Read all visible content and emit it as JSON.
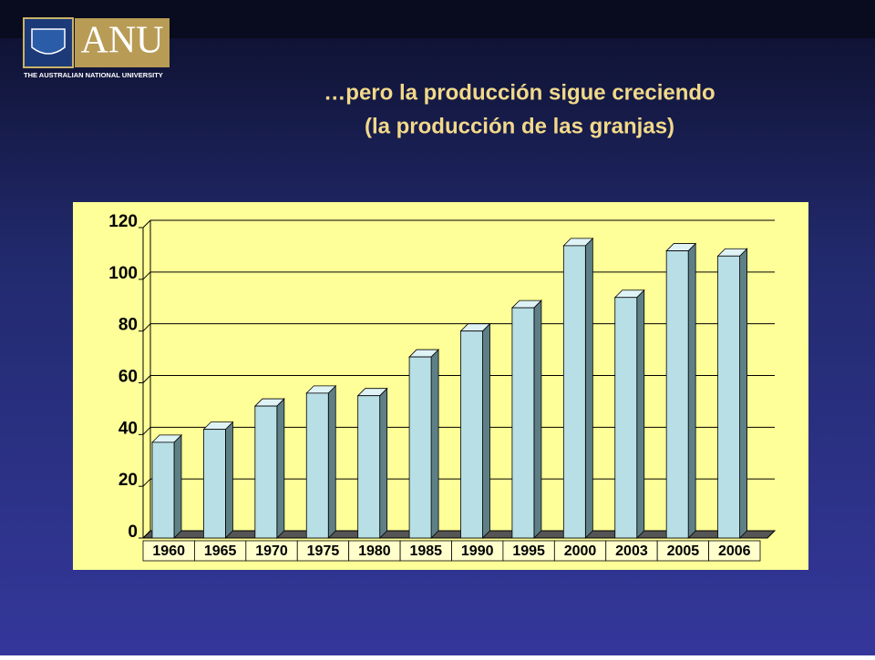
{
  "logo": {
    "name": "ANU",
    "subtitle": "THE AUSTRALIAN NATIONAL UNIVERSITY"
  },
  "chart_data": {
    "type": "bar",
    "title": [
      "…pero la producción sigue creciendo",
      "(la producción de las granjas)"
    ],
    "categories": [
      "1960",
      "1965",
      "1970",
      "1975",
      "1980",
      "1985",
      "1990",
      "1995",
      "2000",
      "2003",
      "2005",
      "2006"
    ],
    "values": [
      37,
      42,
      51,
      56,
      55,
      70,
      80,
      89,
      113,
      93,
      111,
      109
    ],
    "color": "#b8dfe6",
    "ylim": [
      0,
      120
    ],
    "yticks": [
      0,
      20,
      40,
      60,
      80,
      100,
      120
    ],
    "grid": true
  }
}
